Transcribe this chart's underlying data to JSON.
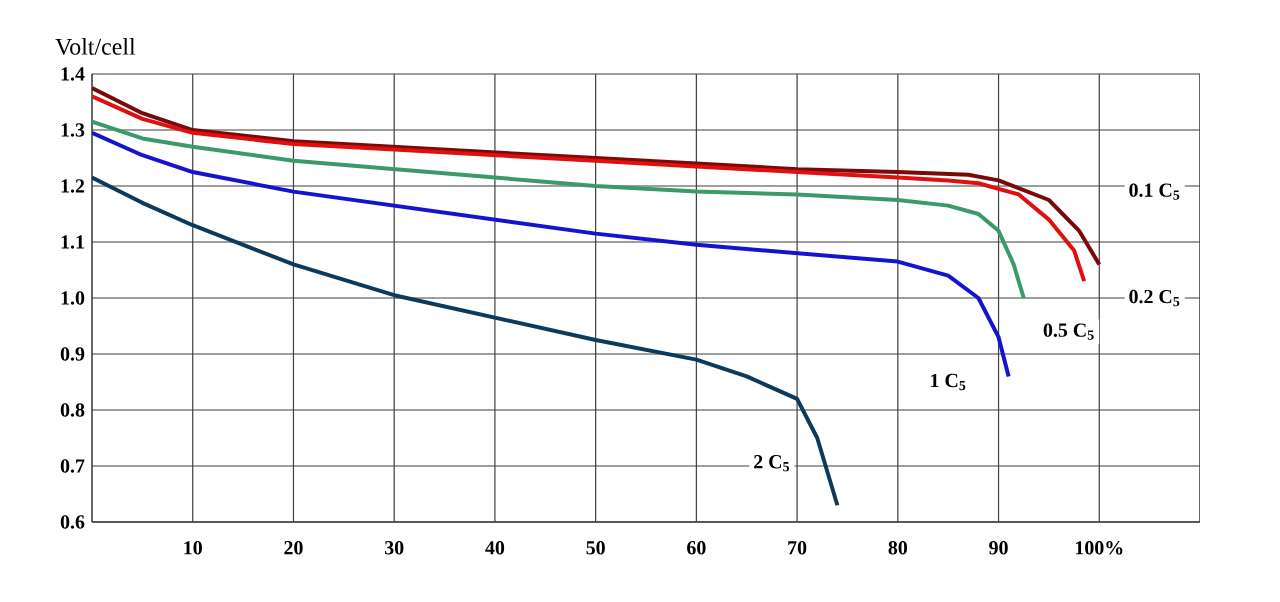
{
  "chart_data": {
    "type": "line",
    "ylabel": "Volt/cell",
    "xlim": [
      0,
      110
    ],
    "ylim": [
      0.6,
      1.4
    ],
    "xticks": [
      10,
      20,
      30,
      40,
      50,
      60,
      70,
      80,
      90,
      {
        "value": 100,
        "label": "100%"
      }
    ],
    "yticks": [
      0.6,
      0.7,
      0.8,
      0.9,
      {
        "value": 1.0,
        "label": "1.0"
      },
      1.1,
      1.2,
      1.3,
      1.4
    ],
    "grid": true,
    "line_style": "solid",
    "series": [
      {
        "color": "#7a0a0a",
        "x": [
          0,
          5,
          10,
          20,
          30,
          40,
          50,
          60,
          70,
          80,
          87,
          90,
          95,
          98,
          100
        ],
        "values": [
          1.375,
          1.33,
          1.3,
          1.28,
          1.27,
          1.26,
          1.25,
          1.24,
          1.23,
          1.225,
          1.22,
          1.21,
          1.175,
          1.12,
          1.06
        ]
      },
      {
        "color": "#e01010",
        "x": [
          0,
          5,
          10,
          20,
          30,
          40,
          50,
          60,
          70,
          80,
          85,
          88,
          92,
          95,
          97.5,
          98.5
        ],
        "values": [
          1.36,
          1.32,
          1.295,
          1.275,
          1.265,
          1.255,
          1.245,
          1.235,
          1.225,
          1.215,
          1.21,
          1.205,
          1.185,
          1.14,
          1.085,
          1.03
        ]
      },
      {
        "color": "#3a9a6a",
        "x": [
          0,
          5,
          10,
          20,
          30,
          40,
          50,
          60,
          70,
          80,
          85,
          88,
          90,
          91.5,
          92.5
        ],
        "values": [
          1.315,
          1.285,
          1.27,
          1.245,
          1.23,
          1.215,
          1.2,
          1.19,
          1.185,
          1.175,
          1.165,
          1.15,
          1.12,
          1.06,
          1.0
        ]
      },
      {
        "color": "#1414d0",
        "x": [
          0,
          5,
          10,
          20,
          30,
          40,
          50,
          60,
          70,
          80,
          85,
          88,
          90,
          91
        ],
        "values": [
          1.295,
          1.255,
          1.225,
          1.19,
          1.165,
          1.14,
          1.115,
          1.095,
          1.08,
          1.065,
          1.04,
          1.0,
          0.93,
          0.86
        ]
      },
      {
        "color": "#0d3a5c",
        "x": [
          0,
          5,
          10,
          20,
          30,
          40,
          50,
          60,
          65,
          70,
          72,
          74
        ],
        "values": [
          1.215,
          1.17,
          1.13,
          1.06,
          1.005,
          0.965,
          0.925,
          0.89,
          0.86,
          0.82,
          0.75,
          0.63
        ]
      }
    ],
    "annotations": [
      {
        "text": "0.1 C$_{5}$",
        "x": 105.5,
        "y": 1.19
      },
      {
        "text": "0.2 C$_{5}$",
        "x": 105.5,
        "y": 1.0
      },
      {
        "text": "0.5 C$_{5}$",
        "x": 97,
        "y": 0.94
      },
      {
        "text": "1 C$_{5}$",
        "x": 85,
        "y": 0.85
      },
      {
        "text": "2 C$_{5}$",
        "x": 67.5,
        "y": 0.705
      }
    ]
  }
}
